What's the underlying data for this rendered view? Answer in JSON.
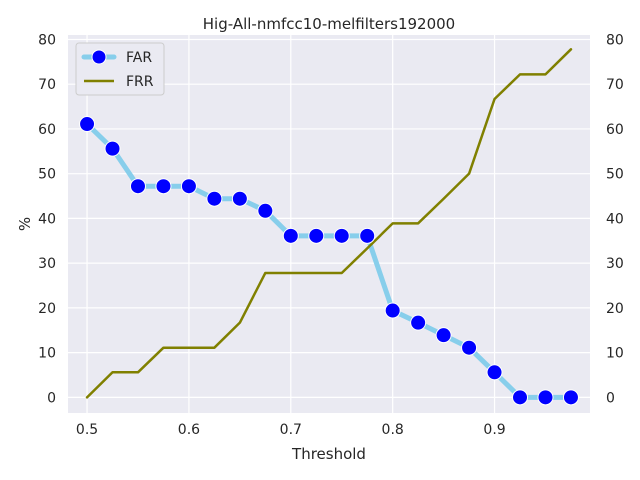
{
  "chart_data": {
    "type": "line",
    "title": "Hig-All-nmfcc10-melfilters192000",
    "xlabel": "Threshold",
    "ylabel": "%",
    "xlim": [
      0.4813,
      0.9937
    ],
    "ylim": [
      -3.5,
      81.0
    ],
    "xticks": [
      0.5,
      0.6,
      0.7,
      0.8,
      0.9
    ],
    "xtick_labels": [
      "0.5",
      "0.6",
      "0.7",
      "0.8",
      "0.9"
    ],
    "yticks": [
      0,
      10,
      20,
      30,
      40,
      50,
      60,
      70,
      80
    ],
    "ytick_labels": [
      "0",
      "10",
      "20",
      "30",
      "40",
      "50",
      "60",
      "70",
      "80"
    ],
    "right_axis_ticks": true,
    "grid": true,
    "legend_position": "top-left",
    "x": [
      0.5,
      0.525,
      0.55,
      0.575,
      0.6,
      0.625,
      0.65,
      0.675,
      0.7,
      0.725,
      0.75,
      0.775,
      0.8,
      0.825,
      0.85,
      0.875,
      0.9,
      0.925,
      0.95,
      0.975
    ],
    "series": [
      {
        "name": "FAR",
        "line_color": "#87ceeb",
        "marker_color": "#0000ff",
        "marker": "circle",
        "values": [
          61.1,
          55.6,
          47.2,
          47.2,
          47.2,
          44.4,
          44.4,
          41.7,
          36.1,
          36.1,
          36.1,
          36.1,
          19.4,
          16.7,
          13.9,
          11.1,
          5.6,
          0.0,
          0.0,
          0.0
        ]
      },
      {
        "name": "FRR",
        "line_color": "#808000",
        "marker": "none",
        "values": [
          0.0,
          5.6,
          5.6,
          11.1,
          11.1,
          11.1,
          16.7,
          27.8,
          27.8,
          27.8,
          27.8,
          33.3,
          38.9,
          38.9,
          44.4,
          50.0,
          66.7,
          72.2,
          72.2,
          77.8
        ]
      }
    ]
  }
}
